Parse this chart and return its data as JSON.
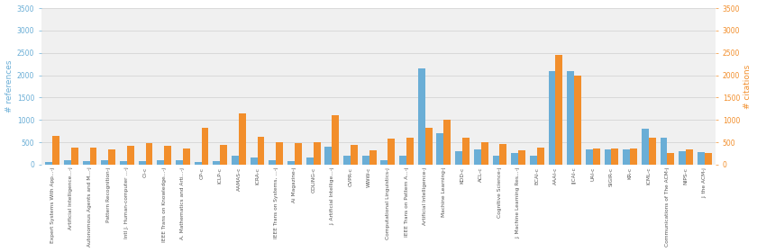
{
  "categories": [
    "Expert Systems With App...-j",
    "Artificial Intelligence...-j",
    "Autonomous Agents and M...-j",
    "Pattern Recognition-j",
    "Intl J. Human-computer ...-j",
    "CI-c",
    "IEEE Trans on Knowledge...-j",
    "A. Mathematics and Arti...-j",
    "CP-c",
    "ICLP-c",
    "AAMAS-c",
    "ICRA-c",
    "IEEE Trans on Systems, ...-j",
    "Ai Magazine-j",
    "COLING-c",
    "J. Artificial Intellige...-j",
    "CVPR-c",
    "WWW-c",
    "Computational Linguistics-j",
    "IEEE Trans on Pattern A...-j",
    "Artificial Intelligence-j",
    "Machine Learning-j",
    "KDD-c",
    "ACL-c",
    "Cognitive Science-j",
    "J. Machine Learning Res...-j",
    "ECAI-c",
    "AAAI-c",
    "IJCAI-c",
    "UAI-c",
    "SIGIR-c",
    "KR-c",
    "ICML-c",
    "Communications of The ACM-j",
    "NIPS-c",
    "J. the ACM-j"
  ],
  "references": [
    50,
    100,
    80,
    100,
    80,
    80,
    100,
    100,
    60,
    80,
    200,
    150,
    100,
    80,
    150,
    400,
    200,
    200,
    100,
    200,
    2150,
    700,
    300,
    350,
    200,
    250,
    200,
    2100,
    2100,
    350,
    350,
    350,
    800,
    600,
    300,
    280
  ],
  "citations": [
    650,
    380,
    380,
    350,
    430,
    480,
    430,
    370,
    820,
    450,
    1150,
    620,
    510,
    490,
    510,
    1100,
    450,
    330,
    580,
    600,
    820,
    1000,
    600,
    500,
    470,
    330,
    380,
    2450,
    2000,
    370,
    360,
    360,
    600,
    260,
    350,
    250
  ],
  "ref_color": "#6aaed6",
  "cit_color": "#f28e2b",
  "ylabel_left": "# references",
  "ylabel_right": "# citations",
  "ylim": [
    0,
    3500
  ],
  "yticks": [
    0,
    500,
    1000,
    1500,
    2000,
    2500,
    3000,
    3500
  ],
  "grid_color": "#d0d0d0",
  "bg_color": "#f0f0f0",
  "label_color_left": "#6aaed6",
  "label_color_right": "#f28e2b",
  "xticklabel_fontsize": 4.2,
  "ylabel_fontsize": 6.5,
  "ytick_fontsize": 5.5,
  "bar_width": 0.38,
  "figwidth": 8.4,
  "figheight": 2.8,
  "dpi": 100
}
